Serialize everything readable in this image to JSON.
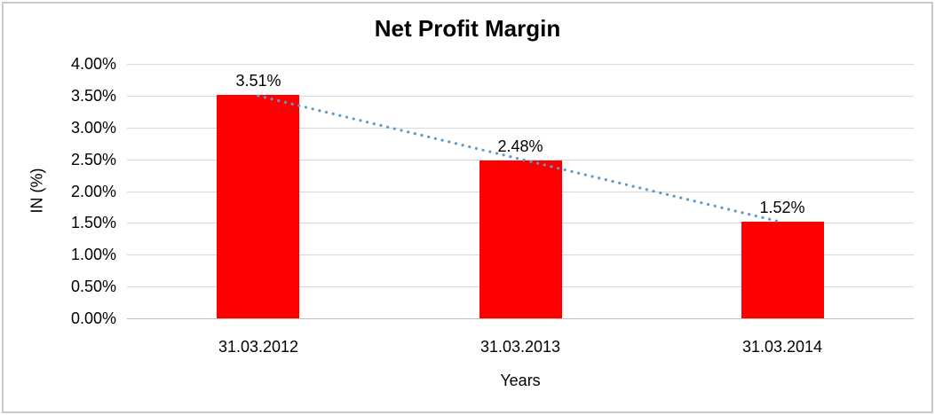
{
  "chart_data": {
    "type": "bar",
    "title": "Net Profit Margin",
    "xlabel": "Years",
    "ylabel": "IN (%)",
    "categories": [
      "31.03.2012",
      "31.03.2013",
      "31.03.2014"
    ],
    "series": [
      {
        "name": "Net Profit Margin",
        "values": [
          3.51,
          2.48,
          1.52
        ],
        "value_labels": [
          "3.51%",
          "2.48%",
          "1.52%"
        ],
        "color": "#ff0000"
      }
    ],
    "trendline": {
      "kind": "linear",
      "style": "dotted",
      "color": "#5b9bd5"
    },
    "ylim": [
      0,
      4
    ],
    "ytick_labels": [
      "4.00%",
      "3.50%",
      "3.00%",
      "2.50%",
      "2.00%",
      "1.50%",
      "1.00%",
      "0.50%",
      "0.00%"
    ],
    "grid": true,
    "legend": false
  },
  "colors": {
    "bar": "#ff0000",
    "trendline": "#5b9bd5",
    "gridline": "#d9d9d9",
    "axis_line": "#bfbfbf",
    "frame_border": "#c9c9c9",
    "text": "#000000",
    "background": "#ffffff"
  }
}
